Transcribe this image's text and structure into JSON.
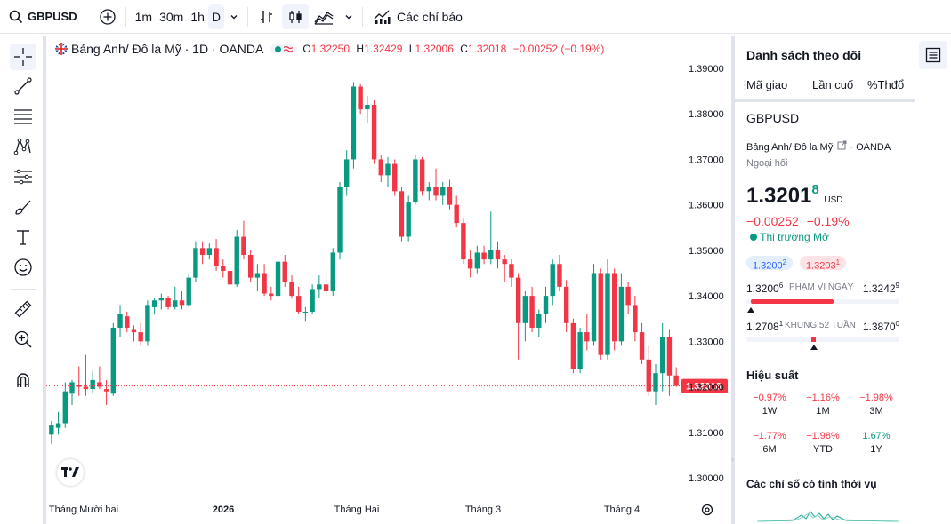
{
  "toolbar": {
    "symbol": "GBPUSD",
    "intervals": [
      "1m",
      "30m",
      "1h",
      "D"
    ],
    "indicators_label": "Các chỉ báo"
  },
  "legend": {
    "title": "Bảng Anh/ Đô la Mỹ · 1D · OANDA",
    "o_label": "O",
    "o": "1.32250",
    "h_label": "H",
    "h": "1.32429",
    "l_label": "L",
    "l": "1.32006",
    "c_label": "C",
    "c": "1.32018",
    "change": "−0.00252 (−0.19%)"
  },
  "chart_data": {
    "type": "candlestick",
    "y_ticks": [
      "1.39000",
      "1.38000",
      "1.37000",
      "1.36000",
      "1.35000",
      "1.34000",
      "1.33000",
      "1.32000",
      "1.31000",
      "1.30000"
    ],
    "x_ticks": [
      "Tháng Mười hai",
      "2026",
      "Tháng Hai",
      "Tháng 3",
      "Tháng 4"
    ],
    "ylim": [
      1.3,
      1.39
    ],
    "last_price_label": "1.32018",
    "last_price": 1.32018,
    "colors": {
      "up": "#089981",
      "down": "#f23645"
    },
    "candles": [
      [
        1.3095,
        1.3125,
        1.3075,
        1.3115
      ],
      [
        1.311,
        1.3145,
        1.3095,
        1.312
      ],
      [
        1.312,
        1.321,
        1.311,
        1.319
      ],
      [
        1.3185,
        1.3215,
        1.316,
        1.321
      ],
      [
        1.3205,
        1.3245,
        1.318,
        1.32
      ],
      [
        1.32,
        1.327,
        1.318,
        1.3195
      ],
      [
        1.3195,
        1.3235,
        1.3185,
        1.3215
      ],
      [
        1.321,
        1.3245,
        1.3195,
        1.32
      ],
      [
        1.3195,
        1.3215,
        1.316,
        1.319
      ],
      [
        1.3185,
        1.334,
        1.318,
        1.333
      ],
      [
        1.333,
        1.338,
        1.331,
        1.336
      ],
      [
        1.3355,
        1.3365,
        1.332,
        1.333
      ],
      [
        1.3325,
        1.3335,
        1.33,
        1.332
      ],
      [
        1.332,
        1.334,
        1.329,
        1.33
      ],
      [
        1.33,
        1.339,
        1.329,
        1.338
      ],
      [
        1.3375,
        1.3395,
        1.336,
        1.339
      ],
      [
        1.339,
        1.3405,
        1.337,
        1.3395
      ],
      [
        1.3395,
        1.34,
        1.337,
        1.3375
      ],
      [
        1.3375,
        1.342,
        1.337,
        1.339
      ],
      [
        1.339,
        1.341,
        1.337,
        1.338
      ],
      [
        1.338,
        1.345,
        1.3375,
        1.344
      ],
      [
        1.344,
        1.352,
        1.343,
        1.3505
      ],
      [
        1.3505,
        1.352,
        1.347,
        1.349
      ],
      [
        1.349,
        1.3515,
        1.348,
        1.3505
      ],
      [
        1.3505,
        1.3525,
        1.3455,
        1.3465
      ],
      [
        1.3465,
        1.348,
        1.344,
        1.3455
      ],
      [
        1.3455,
        1.3465,
        1.341,
        1.3425
      ],
      [
        1.3425,
        1.3545,
        1.342,
        1.353
      ],
      [
        1.353,
        1.3565,
        1.348,
        1.349
      ],
      [
        1.349,
        1.35,
        1.343,
        1.344
      ],
      [
        1.344,
        1.347,
        1.341,
        1.345
      ],
      [
        1.345,
        1.347,
        1.34,
        1.3405
      ],
      [
        1.3405,
        1.342,
        1.339,
        1.34
      ],
      [
        1.34,
        1.349,
        1.3395,
        1.3475
      ],
      [
        1.3475,
        1.349,
        1.342,
        1.343
      ],
      [
        1.343,
        1.3445,
        1.3395,
        1.34
      ],
      [
        1.34,
        1.342,
        1.336,
        1.3365
      ],
      [
        1.3365,
        1.3375,
        1.3345,
        1.3365
      ],
      [
        1.3365,
        1.3425,
        1.336,
        1.3415
      ],
      [
        1.3415,
        1.3445,
        1.3395,
        1.3425
      ],
      [
        1.3425,
        1.346,
        1.34,
        1.341
      ],
      [
        1.341,
        1.3505,
        1.34,
        1.3495
      ],
      [
        1.3495,
        1.365,
        1.348,
        1.364
      ],
      [
        1.364,
        1.372,
        1.362,
        1.37
      ],
      [
        1.37,
        1.387,
        1.368,
        1.386
      ],
      [
        1.386,
        1.3865,
        1.38,
        1.381
      ],
      [
        1.381,
        1.384,
        1.378,
        1.382
      ],
      [
        1.382,
        1.383,
        1.369,
        1.37
      ],
      [
        1.37,
        1.371,
        1.365,
        1.3665
      ],
      [
        1.3665,
        1.3705,
        1.364,
        1.369
      ],
      [
        1.369,
        1.37,
        1.362,
        1.363
      ],
      [
        1.363,
        1.364,
        1.352,
        1.353
      ],
      [
        1.353,
        1.362,
        1.352,
        1.3605
      ],
      [
        1.3605,
        1.371,
        1.36,
        1.37
      ],
      [
        1.37,
        1.3705,
        1.362,
        1.363
      ],
      [
        1.363,
        1.365,
        1.361,
        1.364
      ],
      [
        1.364,
        1.368,
        1.361,
        1.362
      ],
      [
        1.362,
        1.365,
        1.36,
        1.364
      ],
      [
        1.364,
        1.3655,
        1.359,
        1.36
      ],
      [
        1.36,
        1.362,
        1.355,
        1.356
      ],
      [
        1.356,
        1.357,
        1.347,
        1.348
      ],
      [
        1.348,
        1.35,
        1.344,
        1.346
      ],
      [
        1.346,
        1.351,
        1.345,
        1.3495
      ],
      [
        1.3495,
        1.351,
        1.347,
        1.348
      ],
      [
        1.348,
        1.3585,
        1.347,
        1.35
      ],
      [
        1.35,
        1.352,
        1.346,
        1.348
      ],
      [
        1.348,
        1.349,
        1.343,
        1.347
      ],
      [
        1.347,
        1.348,
        1.342,
        1.344
      ],
      [
        1.344,
        1.345,
        1.326,
        1.334
      ],
      [
        1.334,
        1.341,
        1.33,
        1.34
      ],
      [
        1.34,
        1.342,
        1.332,
        1.333
      ],
      [
        1.333,
        1.337,
        1.331,
        1.336
      ],
      [
        1.336,
        1.342,
        1.334,
        1.34
      ],
      [
        1.34,
        1.348,
        1.338,
        1.347
      ],
      [
        1.347,
        1.349,
        1.341,
        1.342
      ],
      [
        1.342,
        1.3435,
        1.332,
        1.334
      ],
      [
        1.334,
        1.335,
        1.323,
        1.324
      ],
      [
        1.324,
        1.333,
        1.323,
        1.332
      ],
      [
        1.332,
        1.336,
        1.328,
        1.33
      ],
      [
        1.33,
        1.347,
        1.329,
        1.345
      ],
      [
        1.345,
        1.346,
        1.326,
        1.327
      ],
      [
        1.327,
        1.348,
        1.326,
        1.345
      ],
      [
        1.345,
        1.346,
        1.328,
        1.33
      ],
      [
        1.33,
        1.345,
        1.329,
        1.342
      ],
      [
        1.342,
        1.343,
        1.336,
        1.338
      ],
      [
        1.338,
        1.34,
        1.33,
        1.332
      ],
      [
        1.332,
        1.334,
        1.325,
        1.326
      ],
      [
        1.326,
        1.329,
        1.318,
        1.319
      ],
      [
        1.319,
        1.325,
        1.316,
        1.323
      ],
      [
        1.323,
        1.334,
        1.319,
        1.331
      ],
      [
        1.331,
        1.3325,
        1.318,
        1.3225
      ],
      [
        1.3225,
        1.3243,
        1.32,
        1.3202
      ]
    ]
  },
  "watchlist": {
    "title": "Danh sách theo dõi",
    "col_symbol": "Mã giao",
    "col_last": "Lần cuố",
    "col_change": "%Thđổ",
    "symbol": "GBPUSD",
    "name": "Bảng Anh/ Đô la Mỹ",
    "exchange": "OANDA",
    "category": "Ngoại hối",
    "price_main": "1.3201",
    "price_sup": "8",
    "currency": "USD",
    "change_abs": "−0.00252",
    "change_pct": "−0.19%",
    "market_status": "Thị trường Mở",
    "bid_main": "1.3200",
    "bid_sup": "2",
    "ask_main": "1.3203",
    "ask_sup": "1",
    "day_low_main": "1.3200",
    "day_low_sup": "6",
    "day_range_label": "PHẠM VI NGÀY",
    "day_high_main": "1.3242",
    "day_high_sup": "9",
    "day_range_fill": 0.03,
    "yr_low_main": "1.2708",
    "yr_low_sup": "1",
    "yr_range_label": "KHUNG 52 TUẦN",
    "yr_high_main": "1.3870",
    "yr_high_sup": "0",
    "yr_range_fill": 0.425,
    "perf_title": "Hiệu suất",
    "performance": [
      {
        "value": "−0.97%",
        "label": "1W",
        "dir": "down"
      },
      {
        "value": "−1.16%",
        "label": "1M",
        "dir": "down"
      },
      {
        "value": "−1.98%",
        "label": "3M",
        "dir": "down"
      },
      {
        "value": "−1.77%",
        "label": "6M",
        "dir": "down"
      },
      {
        "value": "−1.98%",
        "label": "YTD",
        "dir": "down"
      },
      {
        "value": "1.67%",
        "label": "1Y",
        "dir": "up"
      }
    ],
    "tech_title": "Các chỉ số có tính thời vụ"
  }
}
